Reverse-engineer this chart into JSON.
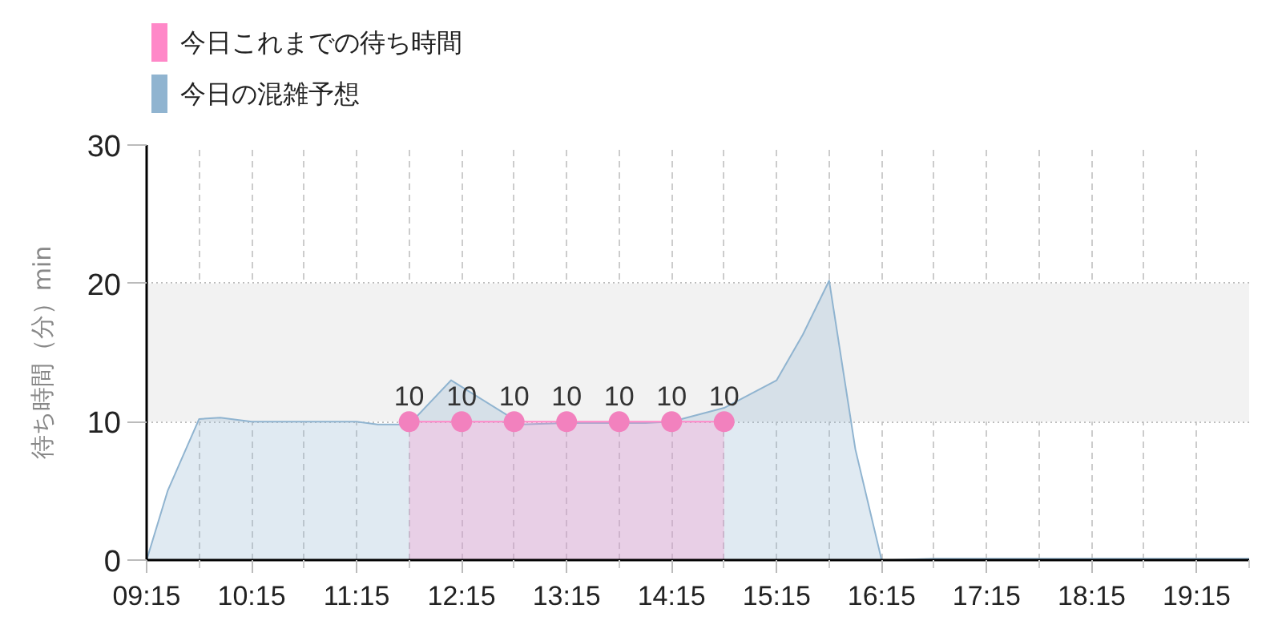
{
  "chart_data": {
    "type": "area",
    "ylabel": "待ち時間（分）min",
    "xlim": [
      9.25,
      19.75
    ],
    "xticks": [
      {
        "value": 9.25,
        "label": "09:15"
      },
      {
        "value": 9.75,
        "label": null
      },
      {
        "value": 10.25,
        "label": "10:15"
      },
      {
        "value": 10.75,
        "label": null
      },
      {
        "value": 11.25,
        "label": "11:15"
      },
      {
        "value": 11.75,
        "label": null
      },
      {
        "value": 12.25,
        "label": "12:15"
      },
      {
        "value": 12.75,
        "label": null
      },
      {
        "value": 13.25,
        "label": "13:15"
      },
      {
        "value": 13.75,
        "label": null
      },
      {
        "value": 14.25,
        "label": "14:15"
      },
      {
        "value": 14.75,
        "label": null
      },
      {
        "value": 15.25,
        "label": "15:15"
      },
      {
        "value": 15.75,
        "label": null
      },
      {
        "value": 16.25,
        "label": "16:15"
      },
      {
        "value": 16.75,
        "label": null
      },
      {
        "value": 17.25,
        "label": "17:15"
      },
      {
        "value": 17.75,
        "label": null
      },
      {
        "value": 18.25,
        "label": "18:15"
      },
      {
        "value": 18.75,
        "label": null
      },
      {
        "value": 19.25,
        "label": "19:15"
      },
      {
        "value": 19.75,
        "label": null
      }
    ],
    "ylim": [
      0,
      30
    ],
    "yticks": [
      0,
      10,
      20,
      30
    ],
    "grid": true,
    "legend": "top left",
    "bands": [
      {
        "axis": "y",
        "from": 10,
        "to": 20,
        "color": "#f2f2f2"
      }
    ],
    "series": [
      {
        "name": "今日これまでの待ち時間",
        "color": "#ff88c8",
        "marker": "circle",
        "x": [
          11.75,
          12.25,
          12.75,
          13.25,
          13.75,
          14.25,
          14.75
        ],
        "values": [
          10,
          10,
          10,
          10,
          10,
          10,
          10
        ],
        "value_labels": [
          "10",
          "10",
          "10",
          "10",
          "10",
          "10",
          "10"
        ]
      },
      {
        "name": "今日の混雑予想",
        "color": "#90b4d0",
        "marker": "none",
        "x": [
          9.25,
          9.45,
          9.75,
          9.95,
          10.25,
          11.25,
          11.45,
          11.75,
          12.15,
          12.7,
          12.8,
          13.25,
          14.0,
          14.25,
          14.75,
          15.25,
          15.5,
          15.75,
          16.0,
          16.25,
          16.35,
          16.75,
          19.75
        ],
        "values": [
          0,
          5.0,
          10.2,
          10.3,
          10.0,
          10.0,
          9.8,
          9.8,
          13.0,
          10.4,
          9.8,
          9.9,
          9.9,
          10.0,
          11.0,
          13.0,
          16.3,
          20.2,
          8.0,
          0,
          0,
          0.1,
          0.1
        ]
      }
    ]
  }
}
